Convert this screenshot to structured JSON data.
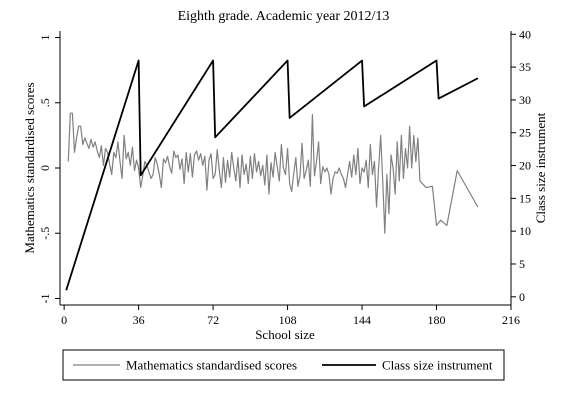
{
  "chart_data": {
    "type": "line",
    "title": "Eighth grade. Academic year 2012/13",
    "xlabel": "School size",
    "ylabel_left": "Mathematics standardised scores",
    "ylabel_right": "Class size instrument",
    "xlim": [
      -2,
      216
    ],
    "ylim_left": [
      -1.05,
      1.05
    ],
    "ylim_right": [
      -1.25,
      40.5
    ],
    "xticks": [
      0,
      36,
      72,
      108,
      144,
      180,
      216
    ],
    "xtick_labels": [
      "0",
      "36",
      "72",
      "108",
      "144",
      "180",
      "216"
    ],
    "yticks_left": [
      1,
      0.5,
      0,
      -0.5,
      -1
    ],
    "ytick_labels_left": [
      "1",
      ".5",
      "0",
      "-.5",
      "-1"
    ],
    "yticks_right": [
      0,
      5,
      10,
      15,
      20,
      25,
      30,
      35,
      40
    ],
    "ytick_labels_right": [
      "0",
      "5",
      "10",
      "15",
      "20",
      "25",
      "30",
      "35",
      "40"
    ],
    "grid": false,
    "legend_position": "bottom",
    "series": [
      {
        "name": "Mathematics standardised scores",
        "axis": "left",
        "color": "#808080",
        "x": [
          2,
          3,
          4,
          5,
          6,
          7,
          8,
          9,
          10,
          11,
          12,
          13,
          14,
          15,
          16,
          17,
          18,
          19,
          20,
          21,
          22,
          23,
          24,
          25,
          26,
          27,
          28,
          29,
          30,
          31,
          32,
          33,
          34,
          35,
          36,
          37,
          38,
          39,
          40,
          41,
          42,
          43,
          44,
          45,
          46,
          47,
          48,
          49,
          50,
          51,
          52,
          53,
          54,
          55,
          56,
          57,
          58,
          59,
          60,
          61,
          62,
          63,
          64,
          65,
          66,
          67,
          68,
          69,
          70,
          71,
          72,
          73,
          74,
          75,
          76,
          77,
          78,
          79,
          80,
          81,
          82,
          83,
          84,
          85,
          86,
          87,
          88,
          89,
          90,
          91,
          92,
          93,
          94,
          95,
          96,
          97,
          98,
          99,
          100,
          101,
          102,
          103,
          104,
          105,
          106,
          107,
          108,
          109,
          110,
          111,
          112,
          113,
          114,
          115,
          116,
          117,
          118,
          119,
          120,
          121,
          122,
          123,
          124,
          125,
          126,
          127,
          128,
          129,
          130,
          131,
          132,
          133,
          134,
          135,
          136,
          137,
          138,
          139,
          140,
          141,
          142,
          143,
          144,
          145,
          146,
          147,
          148,
          149,
          150,
          151,
          152,
          153,
          154,
          155,
          156,
          157,
          158,
          159,
          160,
          161,
          162,
          163,
          164,
          165,
          166,
          167,
          168,
          169,
          170,
          171,
          172,
          175,
          178,
          180,
          182,
          185,
          190,
          200
        ],
        "y": [
          0.05,
          0.42,
          0.42,
          0.12,
          0.23,
          0.32,
          0.32,
          0.18,
          0.23,
          0.19,
          0.15,
          0.22,
          0.16,
          0.2,
          0.13,
          0.08,
          0.17,
          0.02,
          0.15,
          0.12,
          0.03,
          -0.05,
          0.12,
          0.08,
          0.2,
          0.05,
          -0.08,
          0.25,
          0.07,
          0.12,
          0.02,
          0.16,
          -0.02,
          0.06,
          0.0,
          -0.15,
          -0.06,
          0.05,
          0.02,
          -0.03,
          -0.08,
          -0.05,
          0.08,
          0.03,
          -0.05,
          -0.15,
          0.07,
          0.04,
          0.09,
          0.01,
          -0.04,
          0.13,
          0.08,
          0.1,
          -0.01,
          0.07,
          -0.12,
          0.12,
          -0.03,
          0.11,
          -0.07,
          0.1,
          0.13,
          0.06,
          0.11,
          0.02,
          0.09,
          -0.17,
          0.06,
          0.11,
          -0.08,
          -0.05,
          0.14,
          -0.02,
          -0.15,
          0.08,
          -0.11,
          0.06,
          -0.07,
          0.12,
          0.0,
          -0.1,
          0.08,
          -0.15,
          0.1,
          -0.05,
          0.03,
          -0.12,
          0.09,
          -0.08,
          0.11,
          -0.03,
          0.05,
          -0.06,
          0.02,
          -0.13,
          0.1,
          -0.2,
          0.04,
          -0.07,
          0.12,
          0.01,
          -0.1,
          0.18,
          0.0,
          -0.05,
          0.15,
          -0.12,
          -0.18,
          -0.04,
          0.08,
          -0.14,
          -0.06,
          0.19,
          -0.08,
          -0.02,
          0.06,
          -0.14,
          0.41,
          -0.06,
          0.05,
          0.2,
          -0.12,
          0.01,
          -0.03,
          0.0,
          -0.05,
          -0.2,
          -0.08,
          -0.03,
          -0.04,
          0.0,
          -0.05,
          -0.08,
          -0.15,
          -0.05,
          0.05,
          -0.07,
          0.1,
          -0.05,
          0.15,
          -0.12,
          0.0,
          -0.03,
          0.06,
          -0.15,
          0.18,
          -0.05,
          0.05,
          -0.3,
          0.0,
          0.25,
          -0.1,
          -0.5,
          -0.05,
          -0.35,
          0.1,
          0.0,
          -0.2,
          0.2,
          -0.1,
          0.25,
          -0.08,
          0.15,
          0.0,
          0.32,
          0.0,
          0.25,
          0.05,
          0.23,
          -0.1,
          -0.15,
          -0.14,
          -0.44,
          -0.4,
          -0.44,
          -0.02,
          -0.3
        ]
      },
      {
        "name": "Class size instrument",
        "axis": "right",
        "color": "#000000",
        "x": [
          1,
          36,
          36,
          37,
          72,
          72,
          73,
          108,
          108,
          109,
          144,
          144,
          145,
          180,
          180,
          181,
          200
        ],
        "y": [
          1,
          36,
          36,
          18.5,
          36,
          36,
          24.3,
          36,
          36,
          27.25,
          36,
          36,
          29.0,
          36,
          36,
          30.2,
          33.3
        ]
      }
    ]
  }
}
